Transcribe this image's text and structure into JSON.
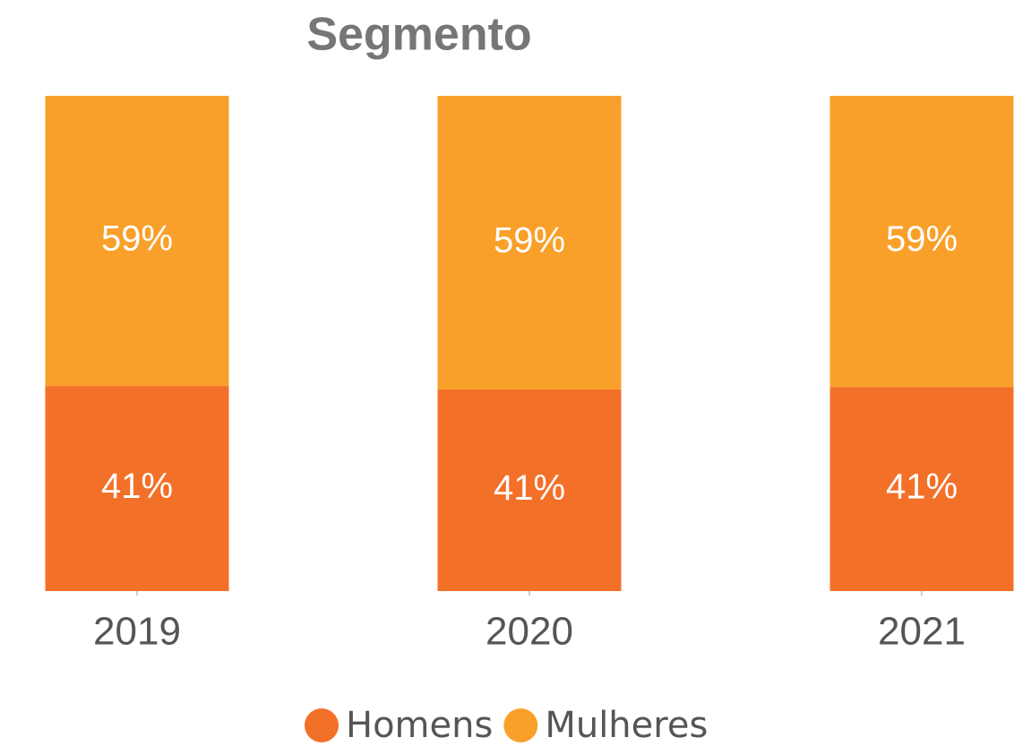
{
  "chart_data": {
    "type": "stacked_bar",
    "title": "Segmento",
    "categories": [
      "2019",
      "2020",
      "2021"
    ],
    "series": [
      {
        "name": "Homens",
        "color": "#f37029",
        "values": [
          41.4,
          40.7,
          41.2
        ],
        "value_labels": [
          "41%",
          "41%",
          "41%"
        ]
      },
      {
        "name": "Mulheres",
        "color": "#f9a02a",
        "values": [
          58.6,
          59.3,
          58.8
        ],
        "value_labels": [
          "59%",
          "59%",
          "59%"
        ]
      }
    ],
    "legend": "bottom"
  }
}
